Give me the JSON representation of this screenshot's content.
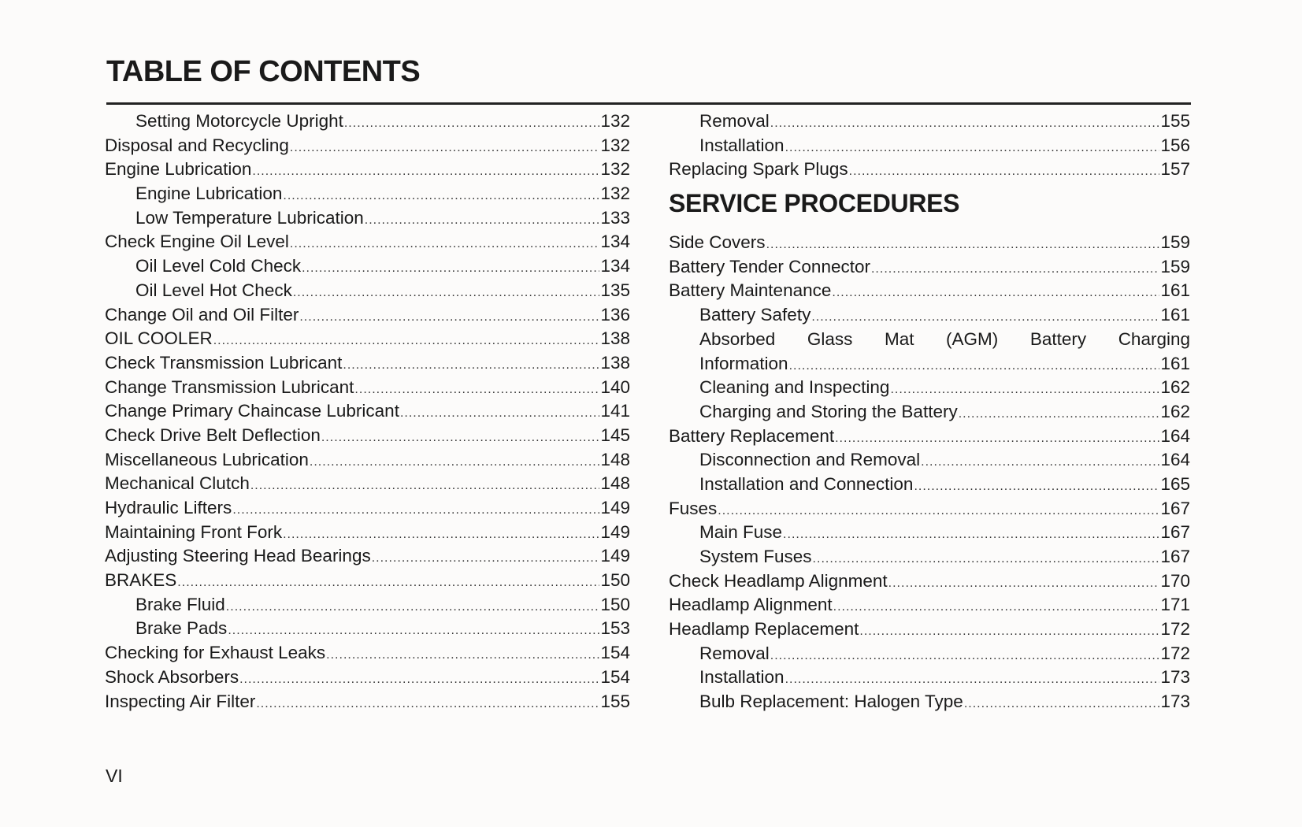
{
  "title": "TABLE OF CONTENTS",
  "left_column": [
    {
      "label": "Setting Motorcycle Upright",
      "page": "132",
      "level": 2
    },
    {
      "label": "Disposal and Recycling",
      "page": "132",
      "level": 1
    },
    {
      "label": "Engine Lubrication",
      "page": "132",
      "level": 1
    },
    {
      "label": "Engine Lubrication",
      "page": "132",
      "level": 2
    },
    {
      "label": "Low Temperature Lubrication",
      "page": "133",
      "level": 2
    },
    {
      "label": "Check Engine Oil Level",
      "page": "134",
      "level": 1
    },
    {
      "label": "Oil Level Cold Check",
      "page": "134",
      "level": 2
    },
    {
      "label": "Oil Level Hot Check",
      "page": "135",
      "level": 2
    },
    {
      "label": "Change Oil and Oil Filter",
      "page": "136",
      "level": 1
    },
    {
      "label": "OIL COOLER",
      "page": "138",
      "level": 1
    },
    {
      "label": "Check Transmission Lubricant",
      "page": "138",
      "level": 1
    },
    {
      "label": "Change Transmission Lubricant",
      "page": "140",
      "level": 1
    },
    {
      "label": "Change Primary Chaincase Lubricant",
      "page": "141",
      "level": 1
    },
    {
      "label": "Check Drive Belt Deflection",
      "page": "145",
      "level": 1
    },
    {
      "label": "Miscellaneous Lubrication",
      "page": "148",
      "level": 1
    },
    {
      "label": "Mechanical Clutch",
      "page": "148",
      "level": 1
    },
    {
      "label": "Hydraulic Lifters",
      "page": "149",
      "level": 1
    },
    {
      "label": "Maintaining Front Fork",
      "page": "149",
      "level": 1
    },
    {
      "label": "Adjusting Steering Head Bearings",
      "page": "149",
      "level": 1
    },
    {
      "label": "BRAKES",
      "page": "150",
      "level": 1
    },
    {
      "label": "Brake Fluid",
      "page": "150",
      "level": 2
    },
    {
      "label": "Brake Pads",
      "page": "153",
      "level": 2
    },
    {
      "label": "Checking for Exhaust Leaks",
      "page": "154",
      "level": 1
    },
    {
      "label": "Shock Absorbers",
      "page": "154",
      "level": 1
    },
    {
      "label": "Inspecting Air Filter",
      "page": "155",
      "level": 1
    }
  ],
  "right_column_top": [
    {
      "label": "Removal",
      "page": "155",
      "level": 2
    },
    {
      "label": "Installation",
      "page": "156",
      "level": 2
    },
    {
      "label": "Replacing Spark Plugs",
      "page": "157",
      "level": 1
    }
  ],
  "section_heading": "SERVICE PROCEDURES",
  "right_column_section": [
    {
      "label": "Side Covers",
      "page": "159",
      "level": 1
    },
    {
      "label": "Battery Tender Connector",
      "page": "159",
      "level": 1
    },
    {
      "label": "Battery Maintenance",
      "page": "161",
      "level": 1
    },
    {
      "label": "Battery Safety",
      "page": "161",
      "level": 2
    },
    {
      "label": "Absorbed Glass Mat (AGM) Battery Charging",
      "page": "",
      "level": 2,
      "wrap": true
    },
    {
      "label": "Information",
      "page": "161",
      "level": 2
    },
    {
      "label": "Cleaning and Inspecting",
      "page": "162",
      "level": 2
    },
    {
      "label": "Charging and Storing the Battery",
      "page": "162",
      "level": 2
    },
    {
      "label": "Battery Replacement",
      "page": "164",
      "level": 1
    },
    {
      "label": "Disconnection and Removal",
      "page": "164",
      "level": 2
    },
    {
      "label": "Installation and Connection",
      "page": "165",
      "level": 2
    },
    {
      "label": "Fuses",
      "page": "167",
      "level": 1
    },
    {
      "label": "Main Fuse",
      "page": "167",
      "level": 2
    },
    {
      "label": "System Fuses",
      "page": "167",
      "level": 2
    },
    {
      "label": "Check Headlamp Alignment",
      "page": "170",
      "level": 1
    },
    {
      "label": "Headlamp Alignment",
      "page": "171",
      "level": 1
    },
    {
      "label": "Headlamp Replacement",
      "page": "172",
      "level": 1
    },
    {
      "label": "Removal",
      "page": "172",
      "level": 2
    },
    {
      "label": "Installation",
      "page": "173",
      "level": 2
    },
    {
      "label": "Bulb Replacement: Halogen Type",
      "page": "173",
      "level": 2
    }
  ],
  "page_number": "VI"
}
